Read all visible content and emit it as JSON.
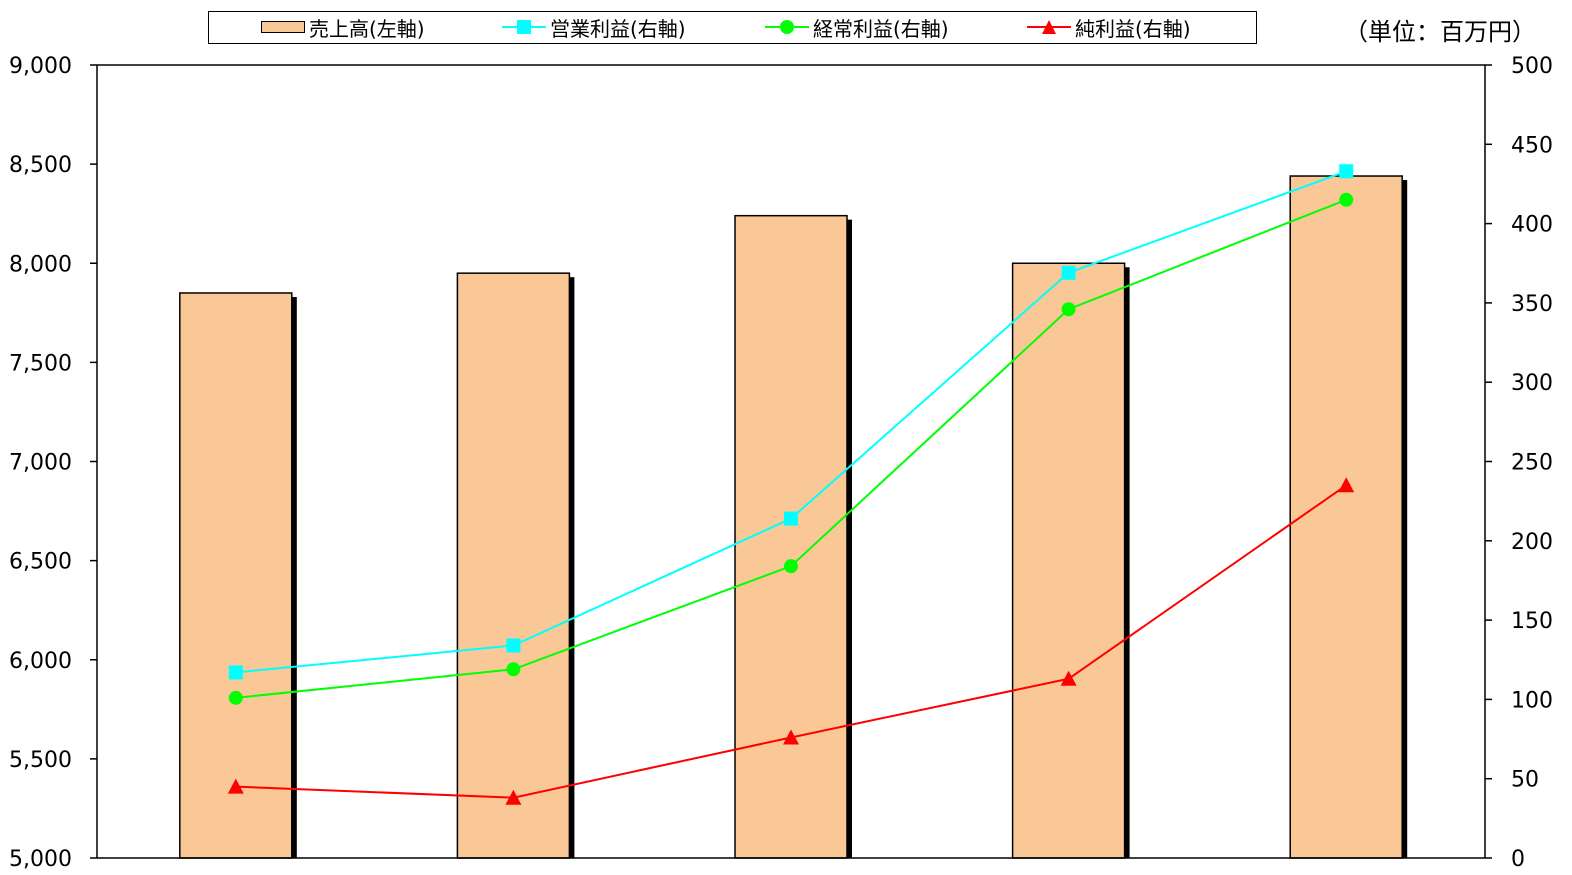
{
  "chart_data": {
    "type": "bar",
    "unit_label": "（単位：百万円）",
    "categories": [
      "",
      "",
      "",
      "",
      ""
    ],
    "bar_series": {
      "name": "売上高(左軸)",
      "axis": "left",
      "values": [
        7850,
        7950,
        8240,
        8000,
        8440
      ],
      "color": "#FAC896"
    },
    "line_series": [
      {
        "name": "営業利益(右軸)",
        "axis": "right",
        "marker": "square",
        "color": "#00FFFF",
        "values": [
          117,
          134,
          214,
          369,
          433
        ]
      },
      {
        "name": "経常利益(右軸)",
        "axis": "right",
        "marker": "circle",
        "color": "#00FF00",
        "values": [
          101,
          119,
          184,
          346,
          415
        ]
      },
      {
        "name": "純利益(右軸)",
        "axis": "right",
        "marker": "triangle",
        "color": "#FF0000",
        "values": [
          45,
          38,
          76,
          113,
          235
        ]
      }
    ],
    "left_axis": {
      "min": 5000,
      "max": 9000,
      "step": 500,
      "tick_labels": [
        "5,000",
        "5,500",
        "6,000",
        "6,500",
        "7,000",
        "7,500",
        "8,000",
        "8,500",
        "9,000"
      ]
    },
    "right_axis": {
      "min": 0,
      "max": 500,
      "step": 50,
      "tick_labels": [
        "0",
        "50",
        "100",
        "150",
        "200",
        "250",
        "300",
        "350",
        "400",
        "450",
        "500"
      ]
    },
    "grid": false,
    "legend_position": "top"
  }
}
